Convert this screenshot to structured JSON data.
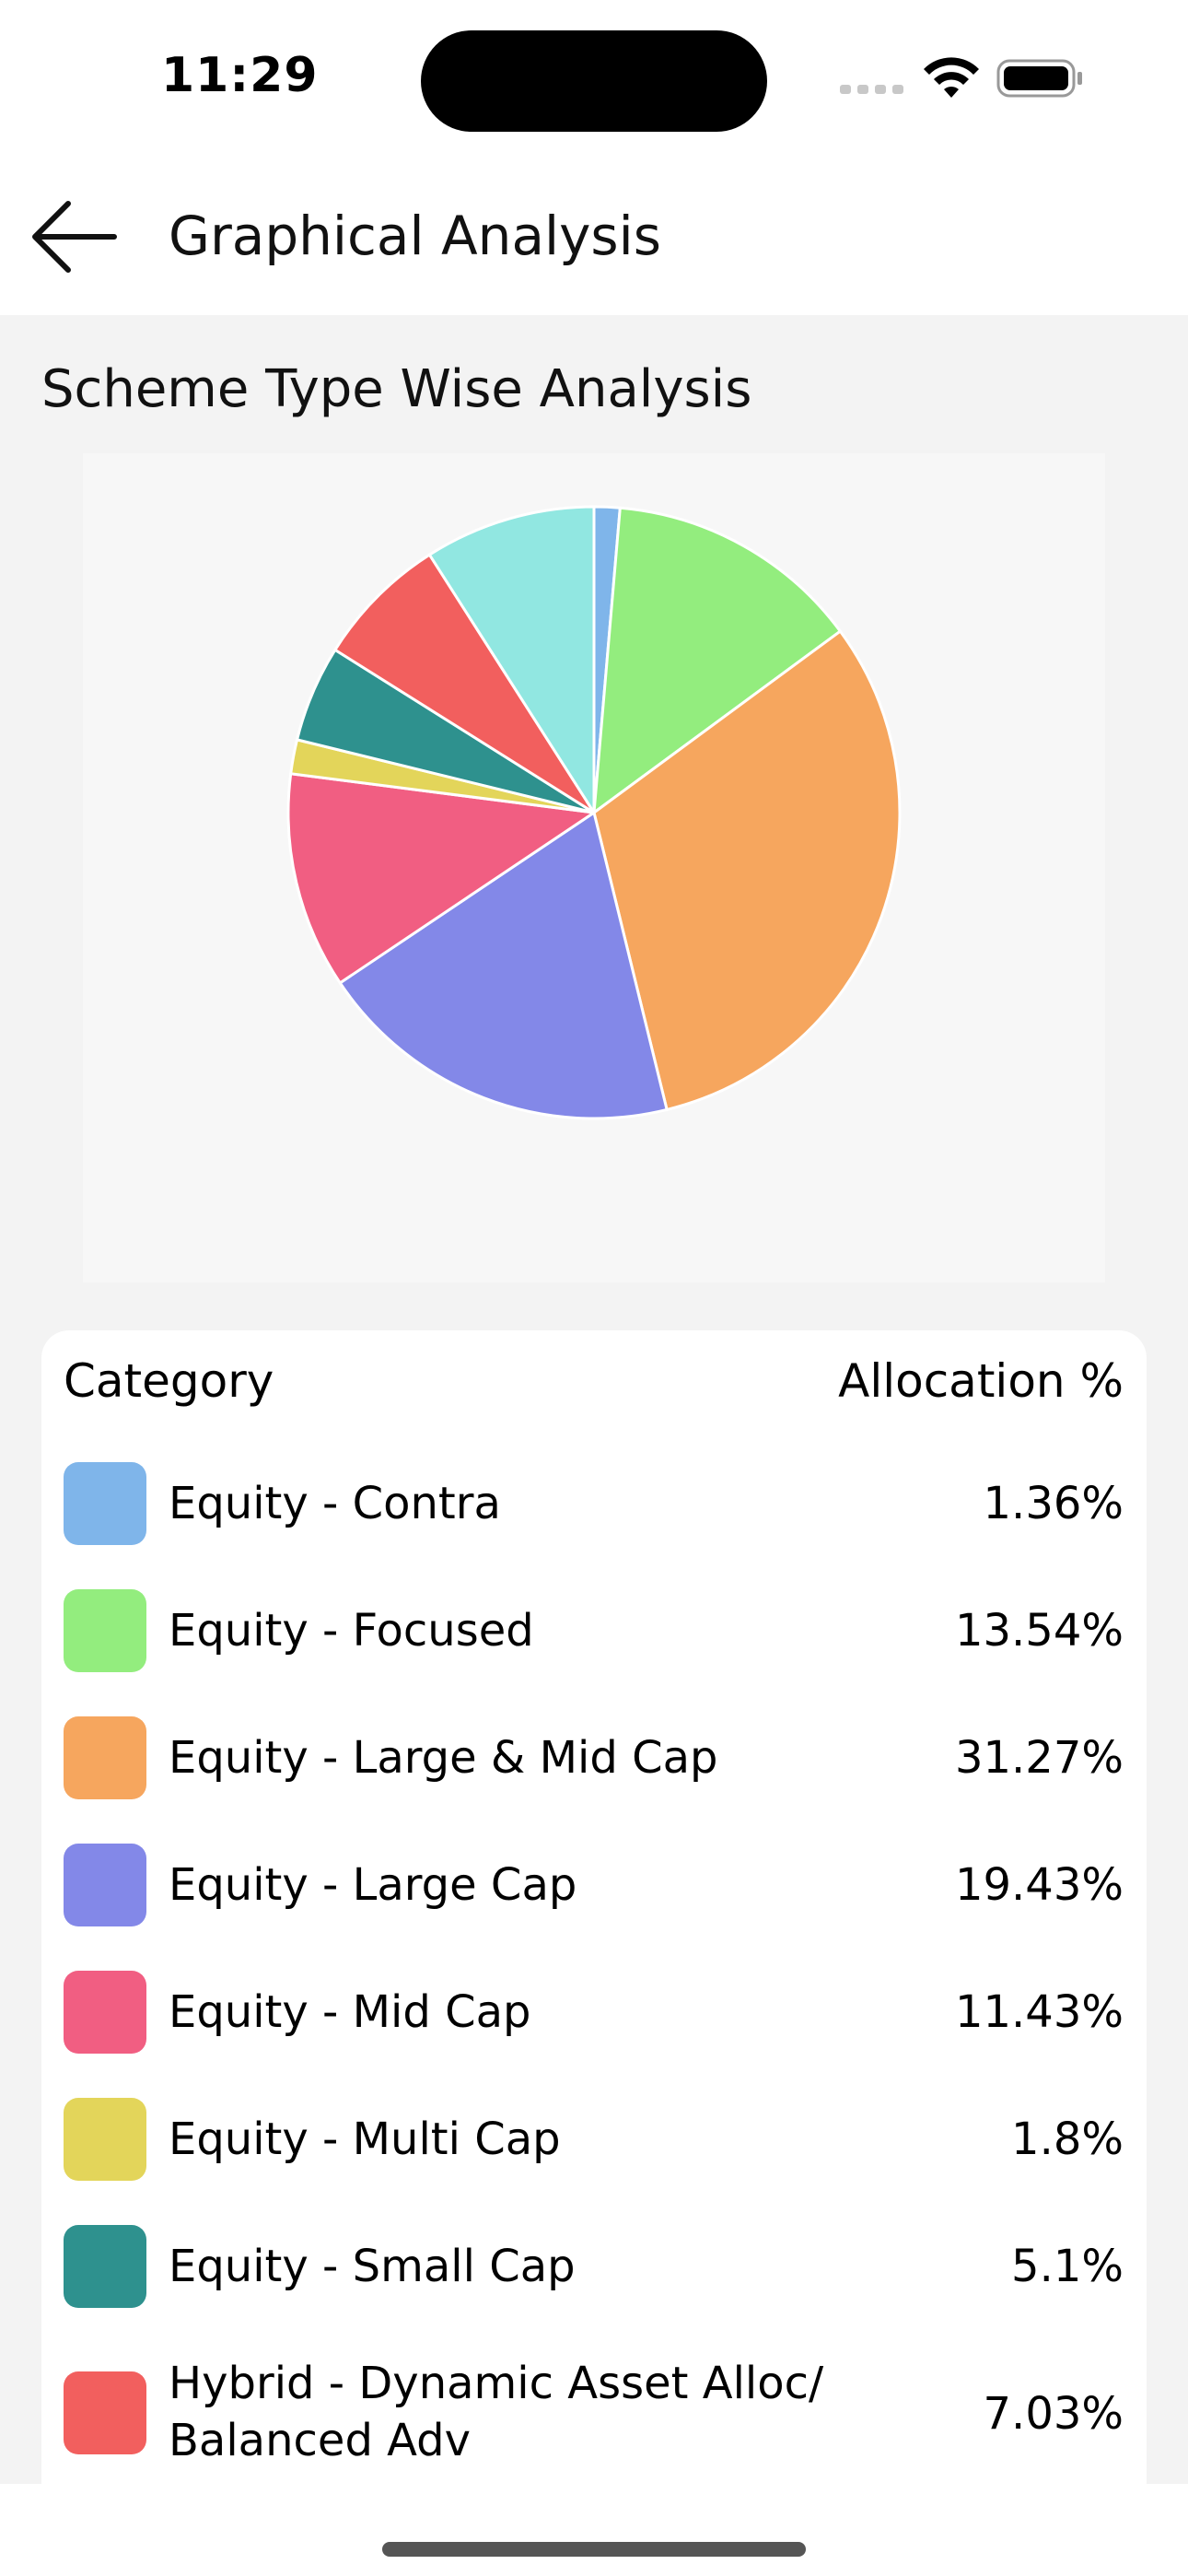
{
  "status_bar": {
    "time": "11:29"
  },
  "header": {
    "title": "Graphical Analysis",
    "back_icon": "arrow-left-icon"
  },
  "section": {
    "title": "Scheme Type Wise Analysis"
  },
  "legend": {
    "column_category": "Category",
    "column_allocation": "Allocation %"
  },
  "chart_data": {
    "type": "pie",
    "title": "",
    "slices": [
      {
        "label": "Equity - Contra",
        "value": 1.36,
        "display": "1.36%",
        "color": "#7fb5ea"
      },
      {
        "label": "Equity - Focused",
        "value": 13.54,
        "display": "13.54%",
        "color": "#93ed7e"
      },
      {
        "label": "Equity - Large & Mid Cap",
        "value": 31.27,
        "display": "31.27%",
        "color": "#f6a65e"
      },
      {
        "label": "Equity - Large Cap",
        "value": 19.43,
        "display": "19.43%",
        "color": "#8388e8"
      },
      {
        "label": "Equity - Mid Cap",
        "value": 11.43,
        "display": "11.43%",
        "color": "#f15e82"
      },
      {
        "label": "Equity - Multi Cap",
        "value": 1.8,
        "display": "1.8%",
        "color": "#e3d55a"
      },
      {
        "label": "Equity - Small Cap",
        "value": 5.1,
        "display": "5.1%",
        "color": "#2e918e"
      },
      {
        "label": "Hybrid - Dynamic Asset Alloc/\nBalanced Adv",
        "value": 7.03,
        "display": "7.03%",
        "color": "#f25f5e"
      },
      {
        "label": "",
        "value": 9.04,
        "display": "",
        "color": "#91e7e1"
      }
    ]
  }
}
